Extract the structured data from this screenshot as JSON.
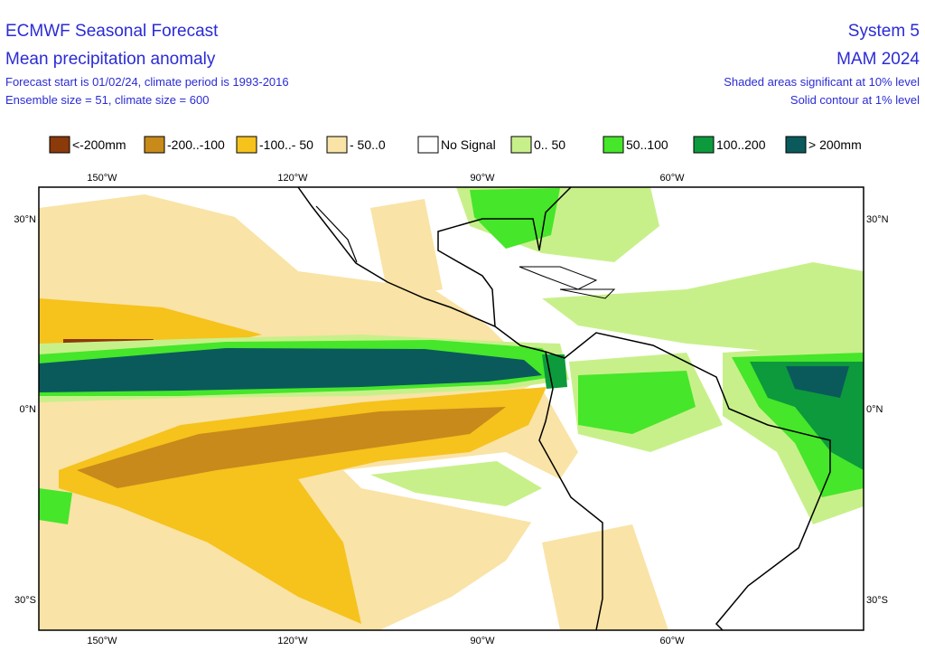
{
  "header": {
    "title": "ECMWF Seasonal Forecast",
    "subtitle": "Mean precipitation anomaly",
    "info_1": "Forecast start is 01/02/24, climate period is 1993-2016",
    "info_2": "Ensemble size = 51, climate size = 600",
    "system": "System 5",
    "season": "MAM 2024",
    "note_1": "Shaded areas significant at 10% level",
    "note_2": "Solid contour at 1% level"
  },
  "legend": [
    {
      "label": "<-200mm",
      "color": "#8b3a0a"
    },
    {
      "label": "-200..-100",
      "color": "#c88a1a"
    },
    {
      "label": "-100..- 50",
      "color": "#f6c21c"
    },
    {
      "label": "- 50..0",
      "color": "#f9e3a6"
    },
    {
      "label": "No Signal",
      "color": "#ffffff"
    },
    {
      "label": "0.. 50",
      "color": "#c8f08a"
    },
    {
      "label": "50..100",
      "color": "#46e62a"
    },
    {
      "label": "100..200",
      "color": "#0c9a3c"
    },
    {
      "label": "> 200mm",
      "color": "#0a5a5c"
    }
  ],
  "lon_labels": [
    "150°W",
    "120°W",
    "90°W",
    "60°W"
  ],
  "lat_labels": [
    "30°N",
    "0°N",
    "30°S"
  ]
}
